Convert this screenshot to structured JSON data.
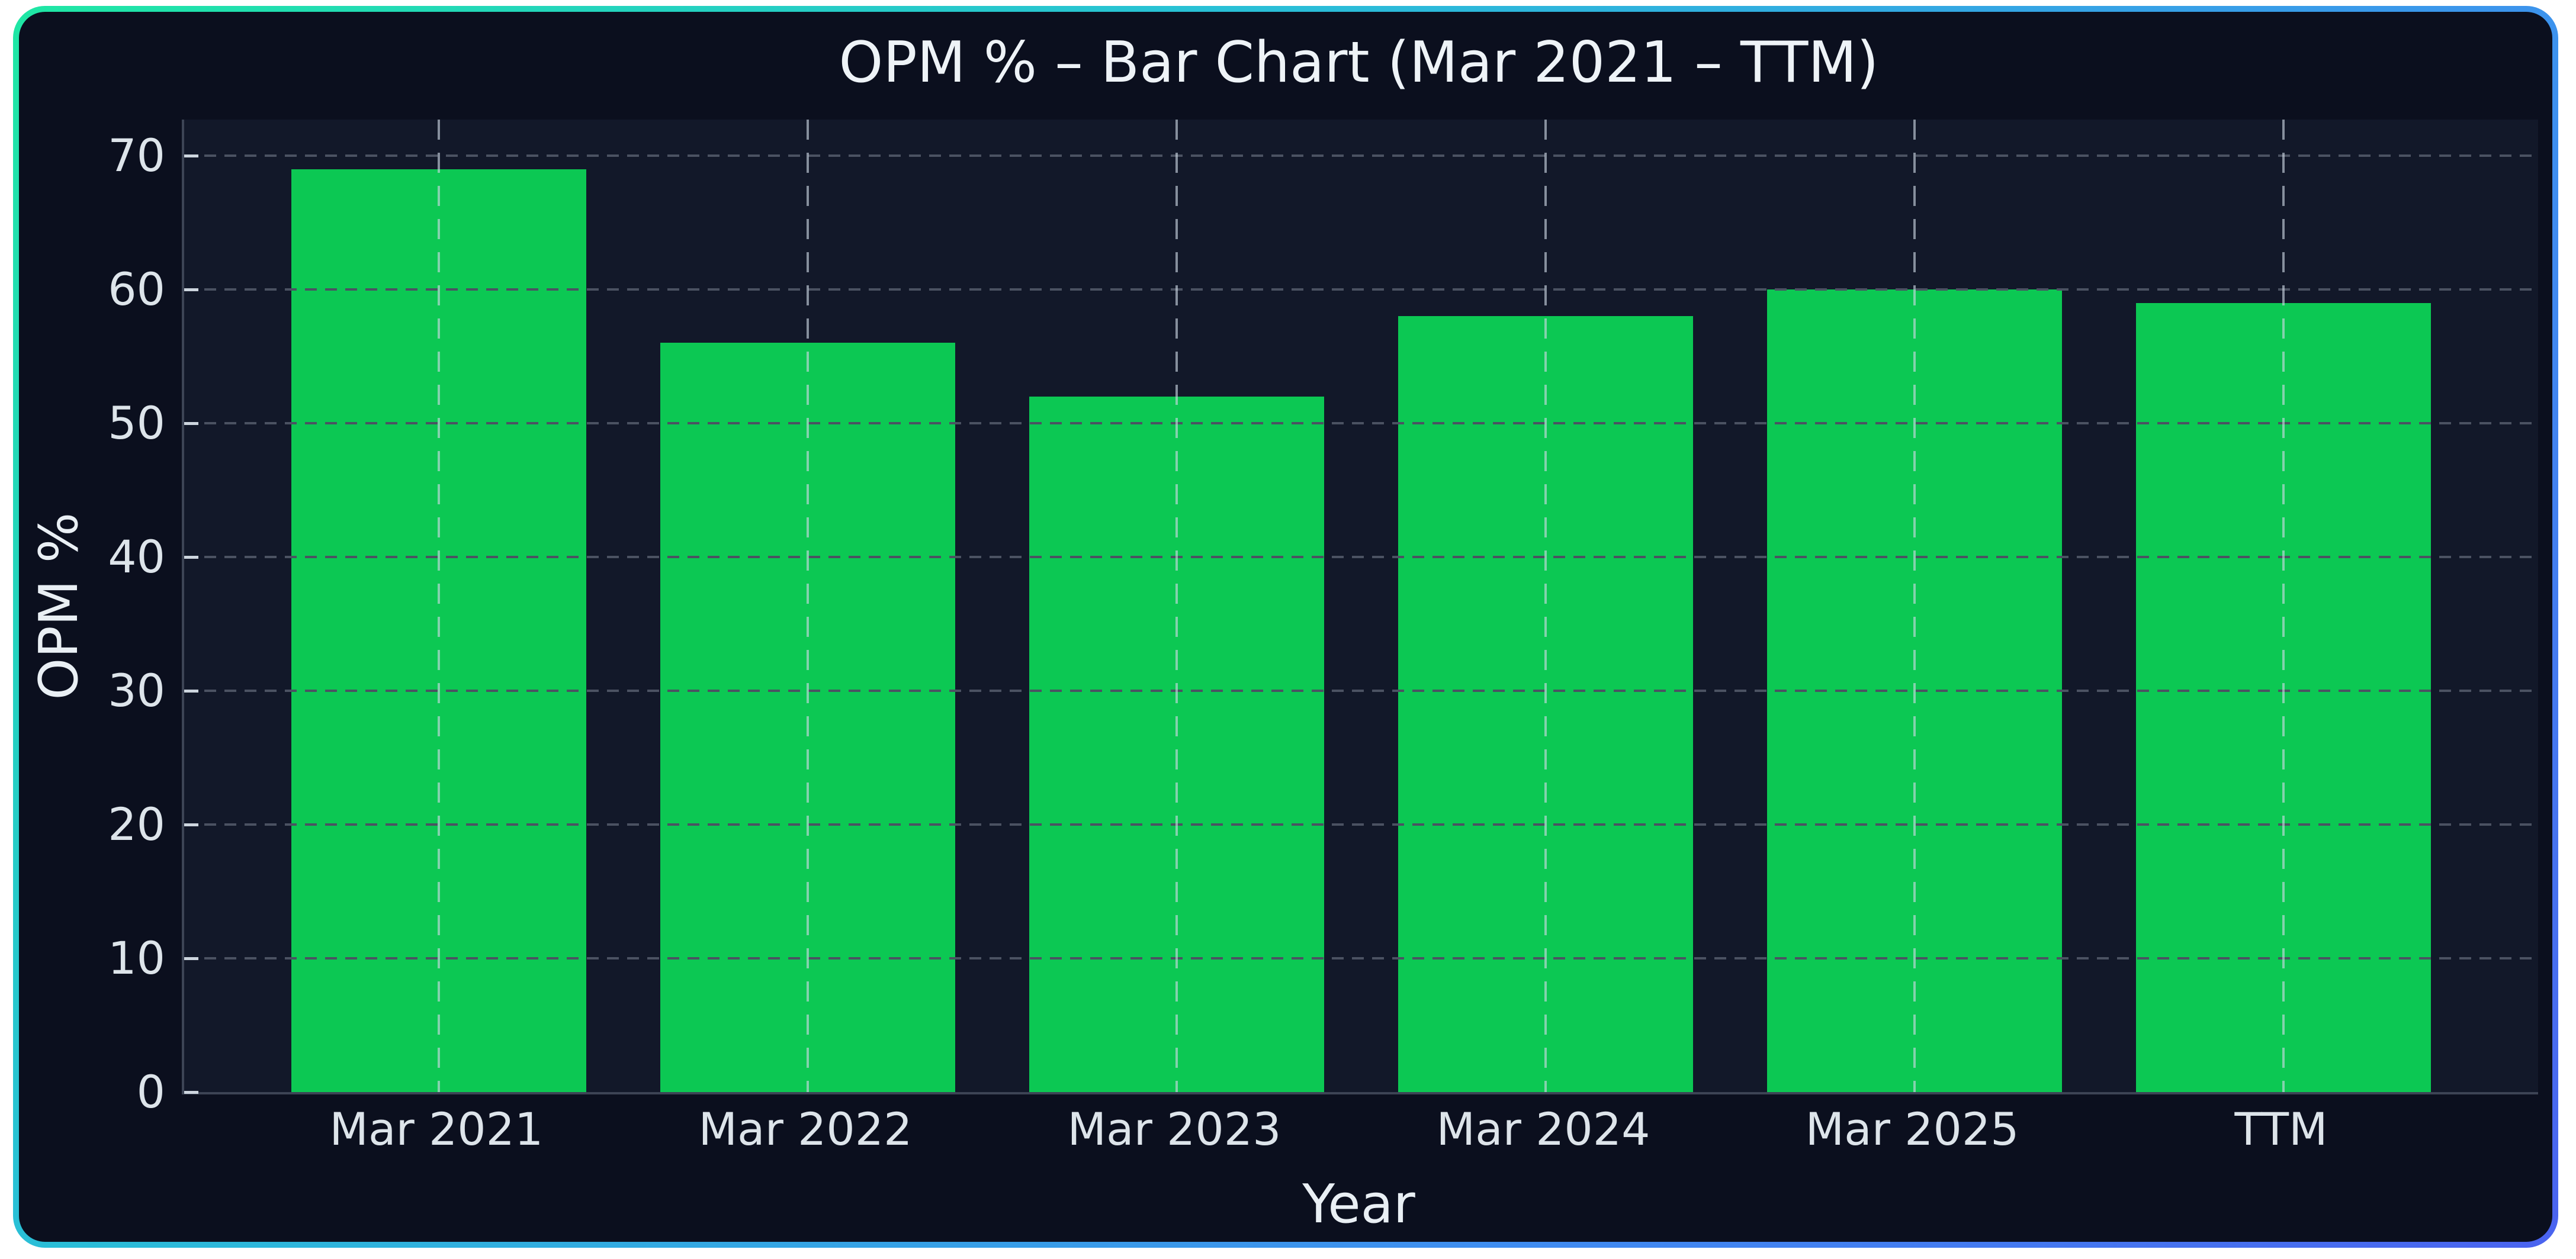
{
  "figure": {
    "background": "#0b0f1e",
    "axes_background": "#121829",
    "border_gradient": [
      "#1fe7a4",
      "#29c0d6",
      "#3f8df0",
      "#4a63ef"
    ],
    "page_background": "#ffffff",
    "spine_color": "#3d4455",
    "text_color": "#e9eff4"
  },
  "chart_data": {
    "type": "bar",
    "title": "OPM % – Bar Chart (Mar 2021 – TTM)",
    "xlabel": "Year",
    "ylabel": "OPM %",
    "categories": [
      "Mar 2021",
      "Mar 2022",
      "Mar 2023",
      "Mar 2024",
      "Mar 2025",
      "TTM"
    ],
    "values": [
      69,
      56,
      52,
      58,
      60,
      59
    ],
    "yticks": [
      0,
      10,
      20,
      30,
      40,
      50,
      60,
      70
    ],
    "ylim": [
      0,
      72.7
    ],
    "bar_color": "#0cc853",
    "grid": "dashed horizontal lines at each ytick and dashed vertical lines at each category center",
    "legend": "none"
  }
}
